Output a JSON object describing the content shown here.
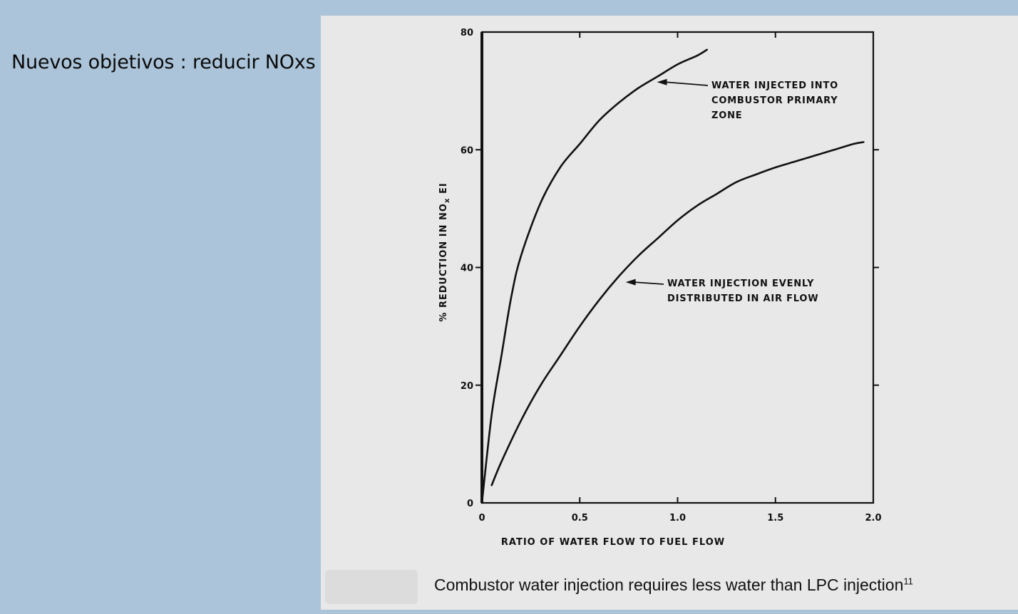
{
  "slide": {
    "title": "Nuevos objetivos : reducir NOxs"
  },
  "caption": {
    "text": "Combustor water injection requires less water than LPC injection",
    "ref": "11"
  },
  "colors": {
    "slide_background": "#abc4d9",
    "panel_background": "#e8e8e8",
    "ink": "#111111"
  },
  "chart_data": {
    "type": "line",
    "xlabel": "RATIO OF WATER FLOW TO FUEL FLOW",
    "ylabel": "% REDUCTION IN NO",
    "ylabel_sub": "x",
    "ylabel_suffix": " EI",
    "xlim": [
      0,
      2.0
    ],
    "ylim": [
      0,
      80
    ],
    "x_ticks": [
      0,
      0.5,
      1.0,
      1.5,
      2.0
    ],
    "x_tick_labels": [
      "0",
      "0.5",
      "1.0",
      "1.5",
      "2.0"
    ],
    "y_ticks": [
      0,
      20,
      40,
      60,
      80
    ],
    "y_tick_labels": [
      "0",
      "20",
      "40",
      "60",
      "80"
    ],
    "grid": false,
    "series": [
      {
        "x": [
          0.0,
          0.05,
          0.1,
          0.15,
          0.2,
          0.3,
          0.4,
          0.5,
          0.6,
          0.7,
          0.8,
          0.9,
          1.0,
          1.1,
          1.15
        ],
        "y": [
          0,
          15,
          25,
          35,
          42,
          51,
          57,
          61,
          65,
          68,
          70.5,
          72.5,
          74.5,
          76,
          77
        ]
      },
      {
        "x": [
          0.05,
          0.1,
          0.2,
          0.3,
          0.4,
          0.5,
          0.6,
          0.7,
          0.8,
          0.9,
          1.0,
          1.1,
          1.2,
          1.3,
          1.4,
          1.5,
          1.6,
          1.7,
          1.8,
          1.9,
          1.95
        ],
        "y": [
          3,
          7,
          14,
          20,
          25,
          30,
          34.5,
          38.5,
          42,
          45,
          48,
          50.5,
          52.5,
          54.5,
          55.8,
          57,
          58,
          59,
          60,
          61,
          61.3
        ]
      }
    ],
    "annotations": [
      {
        "lines": [
          "WATER INJECTED INTO",
          "COMBUSTOR PRIMARY",
          "ZONE"
        ],
        "arrow_to": [
          0.88,
          71.5
        ]
      },
      {
        "lines": [
          "WATER INJECTION EVENLY",
          "DISTRIBUTED IN AIR FLOW"
        ],
        "arrow_to": [
          0.72,
          37.5
        ]
      }
    ]
  }
}
